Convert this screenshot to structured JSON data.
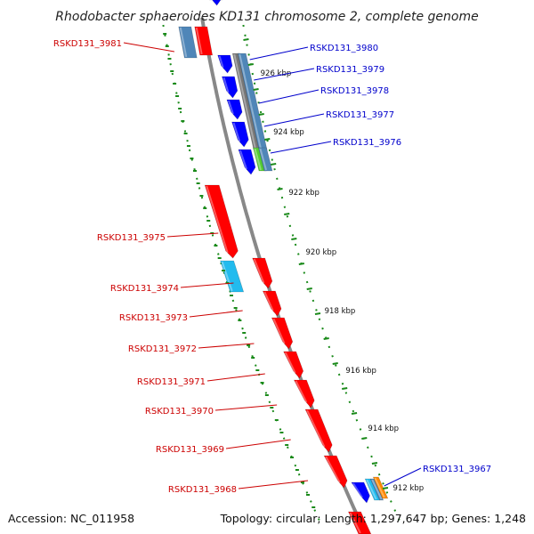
{
  "title": "Rhodobacter sphaeroides KD131 chromosome 2, complete genome",
  "footer": {
    "accession": "Accession: NC_011958",
    "stats": "Topology: circular; Length: 1,297,647 bp; Genes: 1,248"
  },
  "colors": {
    "forward_gene": "#ff0000",
    "reverse_gene": "#0000ff",
    "forward_label": "#cc0000",
    "reverse_label": "#0000cc",
    "backbone": "#888888",
    "ticks": "#1a8a1a",
    "feature_steel": "#4f86b8",
    "feature_gray": "#777777",
    "feature_green": "#55cc33",
    "feature_cyan": "#22bbee",
    "feature_orange": "#ff8800"
  },
  "scale_labels": [
    "926 kbp",
    "924 kbp",
    "922 kbp",
    "920 kbp",
    "918 kbp",
    "916 kbp",
    "914 kbp",
    "912 kbp"
  ],
  "forward_genes": [
    "RSKD131_3981",
    "RSKD131_3975",
    "RSKD131_3974",
    "RSKD131_3973",
    "RSKD131_3972",
    "RSKD131_3971",
    "RSKD131_3970",
    "RSKD131_3969",
    "RSKD131_3968"
  ],
  "reverse_genes": [
    "RSKD131_3980",
    "RSKD131_3979",
    "RSKD131_3978",
    "RSKD131_3977",
    "RSKD131_3976",
    "RSKD131_3967"
  ]
}
